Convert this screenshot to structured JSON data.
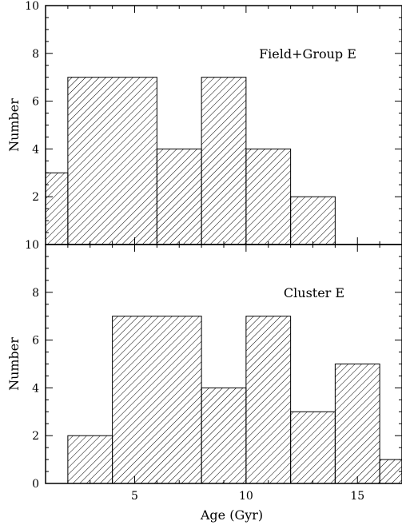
{
  "chart_data": [
    {
      "type": "bar",
      "title": "",
      "annotation": "Field+Group E",
      "ylabel": "Number",
      "xlabel": "",
      "xlim": [
        1,
        17
      ],
      "ylim": [
        0,
        10
      ],
      "yticks": [
        2,
        4,
        6,
        8,
        10
      ],
      "bins": [
        {
          "x0": 1,
          "x1": 2,
          "value": 3
        },
        {
          "x0": 2,
          "x1": 6,
          "value": 7
        },
        {
          "x0": 6,
          "x1": 8,
          "value": 4
        },
        {
          "x0": 8,
          "x1": 10,
          "value": 7
        },
        {
          "x0": 10,
          "x1": 12,
          "value": 4
        },
        {
          "x0": 12,
          "x1": 14,
          "value": 2
        }
      ]
    },
    {
      "type": "bar",
      "title": "",
      "annotation": "Cluster E",
      "ylabel": "Number",
      "xlabel": "Age (Gyr)",
      "xlim": [
        1,
        17
      ],
      "ylim": [
        0,
        10
      ],
      "yticks": [
        0,
        2,
        4,
        6,
        8,
        10
      ],
      "xticks": [
        5,
        10,
        15
      ],
      "bins": [
        {
          "x0": 2,
          "x1": 4,
          "value": 2
        },
        {
          "x0": 4,
          "x1": 8,
          "value": 7
        },
        {
          "x0": 8,
          "x1": 10,
          "value": 4
        },
        {
          "x0": 10,
          "x1": 12,
          "value": 7
        },
        {
          "x0": 12,
          "x1": 14,
          "value": 3
        },
        {
          "x0": 14,
          "x1": 16,
          "value": 5
        },
        {
          "x0": 16,
          "x1": 17,
          "value": 1
        }
      ]
    }
  ]
}
